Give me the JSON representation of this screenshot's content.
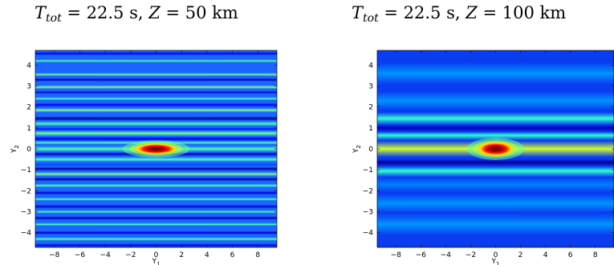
{
  "chart_data": [
    {
      "type": "heatmap",
      "title": "T_tot = 22.5 s, Z = 50 km",
      "title_parts": {
        "lhs": "T",
        "lhs_sub": "tot",
        "t_value": "= 22.5 s,",
        "z_name": "Z",
        "z_value": "= 50 km"
      },
      "xlabel": "Y",
      "xlabel_sub": "1",
      "ylabel": "Y",
      "ylabel_sub": "2",
      "xlim": [
        -9.5,
        9.5
      ],
      "ylim": [
        -4.7,
        4.7
      ],
      "x_ticks": [
        -8,
        -6,
        -4,
        -2,
        0,
        2,
        4,
        6,
        8
      ],
      "y_ticks": [
        -4,
        -3,
        -2,
        -1,
        0,
        1,
        2,
        3,
        4
      ],
      "x_tick_labels": [
        "−8",
        "−6",
        "−4",
        "−2",
        "0",
        "2",
        "4",
        "6",
        "8"
      ],
      "y_tick_labels": [
        "−4",
        "−3",
        "−2",
        "−1",
        "0",
        "1",
        "2",
        "3",
        "4"
      ],
      "colormap": "jet",
      "background_color": "#1a66ff",
      "bands": [
        {
          "y": 4.55,
          "width": 0.06,
          "level": 0.1
        },
        {
          "y": 4.2,
          "width": 0.05,
          "level": 0.45
        },
        {
          "y": 3.55,
          "width": 0.05,
          "level": 0.5
        },
        {
          "y": 3.3,
          "width": 0.06,
          "level": 0.05
        },
        {
          "y": 2.95,
          "width": 0.06,
          "level": 0.5
        },
        {
          "y": 2.7,
          "width": 0.05,
          "level": 0.07
        },
        {
          "y": 2.4,
          "width": 0.05,
          "level": 0.45
        },
        {
          "y": 2.1,
          "width": 0.06,
          "level": 0.1
        },
        {
          "y": 1.85,
          "width": 0.07,
          "level": 0.5
        },
        {
          "y": 1.45,
          "width": 0.07,
          "level": 0.02
        },
        {
          "y": 1.2,
          "width": 0.08,
          "level": 0.45
        },
        {
          "y": 0.95,
          "width": 0.05,
          "level": 0.15
        },
        {
          "y": 0.75,
          "width": 0.1,
          "level": 0.48
        },
        {
          "y": 0.48,
          "width": 0.07,
          "level": 0.1
        },
        {
          "y": 0.3,
          "width": 0.06,
          "level": 0.45
        },
        {
          "y": 0.0,
          "width": 0.1,
          "level": 0.45
        },
        {
          "y": -0.25,
          "width": 0.06,
          "level": 0.05
        },
        {
          "y": -0.5,
          "width": 0.08,
          "level": 0.45
        },
        {
          "y": -0.75,
          "width": 0.06,
          "level": 0.2
        },
        {
          "y": -0.95,
          "width": 0.06,
          "level": 0.02
        },
        {
          "y": -1.2,
          "width": 0.07,
          "level": 0.5
        },
        {
          "y": -1.45,
          "width": 0.06,
          "level": 0.02
        },
        {
          "y": -1.75,
          "width": 0.06,
          "level": 0.45
        },
        {
          "y": -2.1,
          "width": 0.06,
          "level": 0.08
        },
        {
          "y": -2.4,
          "width": 0.05,
          "level": 0.45
        },
        {
          "y": -2.75,
          "width": 0.06,
          "level": 0.08
        },
        {
          "y": -3.0,
          "width": 0.05,
          "level": 0.45
        },
        {
          "y": -3.3,
          "width": 0.06,
          "level": 0.05
        },
        {
          "y": -3.6,
          "width": 0.05,
          "level": 0.45
        },
        {
          "y": -4.0,
          "width": 0.06,
          "level": 0.08
        },
        {
          "y": -4.3,
          "width": 0.06,
          "level": 0.45
        },
        {
          "y": -4.6,
          "width": 0.06,
          "level": 0.1
        }
      ],
      "peak": {
        "x": 0.0,
        "y": 0.0,
        "rx": 1.1,
        "ry": 0.17
      }
    },
    {
      "type": "heatmap",
      "title": "T_tot = 22.5 s, Z = 100 km",
      "title_parts": {
        "lhs": "T",
        "lhs_sub": "tot",
        "t_value": "= 22.5 s,",
        "z_name": "Z",
        "z_value": "= 100 km"
      },
      "xlabel": "Y",
      "xlabel_sub": "1",
      "ylabel": "Y",
      "ylabel_sub": "2",
      "xlim": [
        -9.5,
        9.5
      ],
      "ylim": [
        -4.7,
        4.7
      ],
      "x_ticks": [
        -8,
        -6,
        -4,
        -2,
        0,
        2,
        4,
        6,
        8
      ],
      "y_ticks": [
        -4,
        -3,
        -2,
        -1,
        0,
        1,
        2,
        3,
        4
      ],
      "x_tick_labels": [
        "−8",
        "−6",
        "−4",
        "−2",
        "0",
        "2",
        "4",
        "6",
        "8"
      ],
      "y_tick_labels": [
        "−4",
        "−3",
        "−2",
        "−1",
        "0",
        "1",
        "2",
        "3",
        "4"
      ],
      "colormap": "jet",
      "background_color": "#0a3cf0",
      "bands": [
        {
          "y": 3.6,
          "width": 0.35,
          "level": 0.27
        },
        {
          "y": 2.3,
          "width": 0.3,
          "level": 0.27
        },
        {
          "y": 1.45,
          "width": 0.2,
          "level": 0.42
        },
        {
          "y": 1.0,
          "width": 0.12,
          "level": 0.06
        },
        {
          "y": 0.65,
          "width": 0.16,
          "level": 0.42
        },
        {
          "y": 0.0,
          "width": 0.26,
          "level": 0.58
        },
        {
          "y": -0.65,
          "width": 0.12,
          "level": 0.03
        },
        {
          "y": -1.05,
          "width": 0.2,
          "level": 0.42
        },
        {
          "y": -1.7,
          "width": 0.25,
          "level": 0.25
        },
        {
          "y": -2.6,
          "width": 0.3,
          "level": 0.27
        },
        {
          "y": -3.6,
          "width": 0.35,
          "level": 0.27
        }
      ],
      "peak": {
        "x": 0.0,
        "y": 0.0,
        "rx": 0.95,
        "ry": 0.22
      }
    }
  ]
}
